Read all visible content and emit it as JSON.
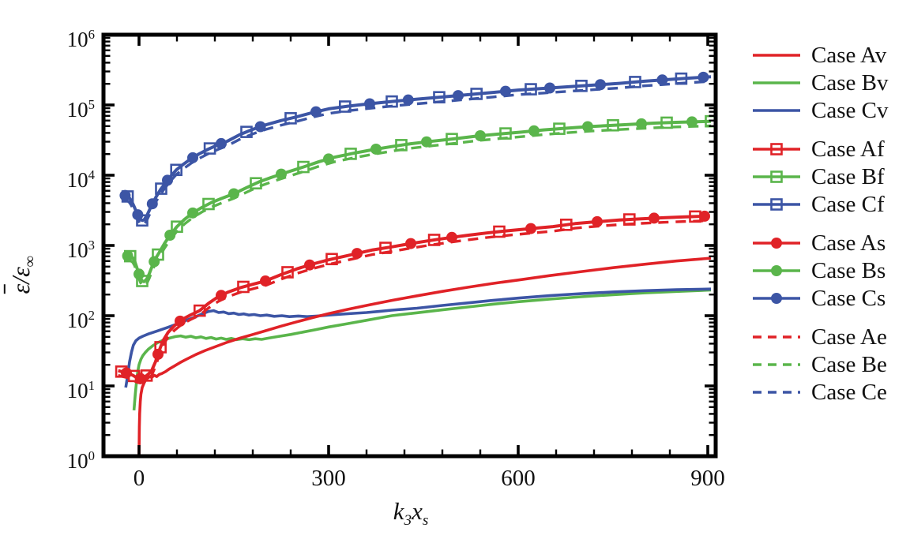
{
  "figure": {
    "background": "#ffffff"
  },
  "chart_data": {
    "type": "line",
    "title": "",
    "xlabel_parts": {
      "base1": "k",
      "sub1": "3",
      "base2": "x",
      "sub2": "s"
    },
    "ylabel_parts": {
      "numerator": "ε",
      "slash": "/",
      "denominator": "ε",
      "subscript": "∞",
      "overbar_on_numerator": true
    },
    "x_axis": {
      "range": [
        -56.25,
        912.5
      ],
      "major_ticks": [
        0,
        300,
        600,
        900
      ],
      "tick_labels": [
        "0",
        "300",
        "600",
        "900"
      ],
      "minor_tick_step": 60
    },
    "y_axis": {
      "scale": "log",
      "range_exponents": [
        0,
        6
      ],
      "tick_label_base": "10",
      "tick_exponents": [
        0,
        1,
        2,
        3,
        4,
        5,
        6
      ]
    },
    "grid": false,
    "legend_position": "right",
    "colors": {
      "red": "#e02227",
      "green": "#5ab54b",
      "blue": "#3c55a5",
      "axis": "#000000"
    },
    "curves": {
      "Av": [
        [
          0,
          1
        ],
        [
          0.5,
          2.6
        ],
        [
          1,
          4
        ],
        [
          2,
          6
        ],
        [
          3,
          7.6
        ],
        [
          5,
          9.5
        ],
        [
          8,
          11
        ],
        [
          11,
          12.4
        ],
        [
          14,
          13
        ],
        [
          17,
          13.6
        ],
        [
          20,
          13.2
        ],
        [
          24,
          14.2
        ],
        [
          28,
          13.6
        ],
        [
          32,
          14.6
        ],
        [
          36,
          15
        ],
        [
          42,
          16
        ],
        [
          48,
          17.5
        ],
        [
          55,
          19
        ],
        [
          65,
          21.5
        ],
        [
          75,
          24
        ],
        [
          90,
          28
        ],
        [
          105,
          32
        ],
        [
          120,
          36
        ],
        [
          140,
          42
        ],
        [
          160,
          48
        ],
        [
          180,
          54
        ],
        [
          200,
          61
        ],
        [
          225,
          71
        ],
        [
          250,
          82
        ],
        [
          275,
          94
        ],
        [
          300,
          107
        ],
        [
          330,
          123
        ],
        [
          360,
          140
        ],
        [
          400,
          165
        ],
        [
          440,
          192
        ],
        [
          480,
          222
        ],
        [
          520,
          254
        ],
        [
          560,
          288
        ],
        [
          600,
          322
        ],
        [
          650,
          372
        ],
        [
          700,
          425
        ],
        [
          750,
          482
        ],
        [
          800,
          540
        ],
        [
          850,
          600
        ],
        [
          905,
          660
        ]
      ],
      "Bv": [
        [
          -8,
          4.5
        ],
        [
          -6,
          7.5
        ],
        [
          -4,
          11.5
        ],
        [
          -2,
          16
        ],
        [
          0,
          20
        ],
        [
          3,
          24
        ],
        [
          6,
          27
        ],
        [
          10,
          30
        ],
        [
          15,
          33.5
        ],
        [
          22,
          37.5
        ],
        [
          30,
          41.5
        ],
        [
          40,
          45.5
        ],
        [
          50,
          48.5
        ],
        [
          58,
          50.5
        ],
        [
          66,
          51.5
        ],
        [
          74,
          49.5
        ],
        [
          82,
          51
        ],
        [
          90,
          48.5
        ],
        [
          98,
          50
        ],
        [
          106,
          47.5
        ],
        [
          114,
          49
        ],
        [
          122,
          46.5
        ],
        [
          130,
          48
        ],
        [
          138,
          46
        ],
        [
          146,
          47.5
        ],
        [
          154,
          45.5
        ],
        [
          164,
          47
        ],
        [
          174,
          45.5
        ],
        [
          184,
          47
        ],
        [
          194,
          46
        ],
        [
          205,
          48
        ],
        [
          220,
          50.5
        ],
        [
          240,
          54
        ],
        [
          260,
          58.5
        ],
        [
          280,
          63.5
        ],
        [
          300,
          69
        ],
        [
          330,
          77
        ],
        [
          360,
          86
        ],
        [
          400,
          100
        ],
        [
          440,
          110
        ],
        [
          480,
          121
        ],
        [
          520,
          133
        ],
        [
          560,
          146
        ],
        [
          600,
          158
        ],
        [
          650,
          172
        ],
        [
          700,
          186
        ],
        [
          750,
          199
        ],
        [
          800,
          211
        ],
        [
          850,
          221
        ],
        [
          905,
          232
        ]
      ],
      "Cv": [
        [
          -21,
          9.5
        ],
        [
          -18,
          14
        ],
        [
          -15,
          22
        ],
        [
          -12,
          30
        ],
        [
          -9,
          38
        ],
        [
          -5,
          44
        ],
        [
          0,
          48
        ],
        [
          6,
          51
        ],
        [
          15,
          55
        ],
        [
          30,
          61
        ],
        [
          45,
          68
        ],
        [
          60,
          76
        ],
        [
          75,
          86
        ],
        [
          90,
          97
        ],
        [
          100,
          106
        ],
        [
          110,
          115
        ],
        [
          118,
          118
        ],
        [
          126,
          111
        ],
        [
          134,
          113
        ],
        [
          142,
          107
        ],
        [
          150,
          109
        ],
        [
          158,
          104
        ],
        [
          166,
          106
        ],
        [
          174,
          102
        ],
        [
          182,
          104
        ],
        [
          192,
          100
        ],
        [
          202,
          102
        ],
        [
          214,
          98
        ],
        [
          226,
          100
        ],
        [
          238,
          97
        ],
        [
          252,
          99
        ],
        [
          266,
          97
        ],
        [
          282,
          99
        ],
        [
          300,
          102
        ],
        [
          320,
          105
        ],
        [
          340,
          108
        ],
        [
          360,
          111
        ],
        [
          380,
          115
        ],
        [
          400,
          120
        ],
        [
          440,
          128
        ],
        [
          480,
          140
        ],
        [
          520,
          152
        ],
        [
          560,
          165
        ],
        [
          600,
          178
        ],
        [
          650,
          193
        ],
        [
          700,
          206
        ],
        [
          750,
          218
        ],
        [
          800,
          227
        ],
        [
          850,
          234
        ],
        [
          905,
          240
        ]
      ],
      "A": [
        [
          -33,
          16.5
        ],
        [
          -28,
          16
        ],
        [
          -22,
          15.5
        ],
        [
          -16,
          15
        ],
        [
          -10,
          14.2
        ],
        [
          -4,
          13.2
        ],
        [
          2,
          12.8
        ],
        [
          8,
          13.2
        ],
        [
          14,
          14.5
        ],
        [
          20,
          16.5
        ],
        [
          26,
          22
        ],
        [
          32,
          32
        ],
        [
          38,
          44
        ],
        [
          46,
          58
        ],
        [
          56,
          72
        ],
        [
          68,
          88
        ],
        [
          82,
          103
        ],
        [
          96,
          118
        ],
        [
          110,
          150
        ],
        [
          125,
          185
        ],
        [
          140,
          215
        ],
        [
          160,
          250
        ],
        [
          180,
          280
        ],
        [
          200,
          312
        ],
        [
          225,
          385
        ],
        [
          250,
          465
        ],
        [
          275,
          545
        ],
        [
          300,
          625
        ],
        [
          335,
          735
        ],
        [
          370,
          865
        ],
        [
          400,
          955
        ],
        [
          430,
          1065
        ],
        [
          460,
          1175
        ],
        [
          490,
          1285
        ],
        [
          520,
          1395
        ],
        [
          550,
          1505
        ],
        [
          585,
          1625
        ],
        [
          620,
          1740
        ],
        [
          655,
          1855
        ],
        [
          690,
          2050
        ],
        [
          725,
          2180
        ],
        [
          760,
          2300
        ],
        [
          795,
          2400
        ],
        [
          830,
          2480
        ],
        [
          865,
          2550
        ],
        [
          900,
          2620
        ]
      ],
      "B": [
        [
          -16,
          710
        ],
        [
          -13,
          700
        ],
        [
          -10,
          670
        ],
        [
          -7,
          600
        ],
        [
          -4,
          500
        ],
        [
          -1,
          415
        ],
        [
          2,
          348
        ],
        [
          5,
          312
        ],
        [
          8,
          306
        ],
        [
          12,
          330
        ],
        [
          16,
          392
        ],
        [
          21,
          512
        ],
        [
          26,
          645
        ],
        [
          32,
          795
        ],
        [
          40,
          1055
        ],
        [
          49,
          1400
        ],
        [
          60,
          1850
        ],
        [
          72,
          2350
        ],
        [
          85,
          2900
        ],
        [
          100,
          3500
        ],
        [
          115,
          4100
        ],
        [
          130,
          4650
        ],
        [
          150,
          5450
        ],
        [
          170,
          6650
        ],
        [
          190,
          8050
        ],
        [
          210,
          9350
        ],
        [
          235,
          11100
        ],
        [
          260,
          13100
        ],
        [
          285,
          15600
        ],
        [
          310,
          18100
        ],
        [
          340,
          20600
        ],
        [
          370,
          23100
        ],
        [
          400,
          25600
        ],
        [
          430,
          28100
        ],
        [
          465,
          30600
        ],
        [
          500,
          33100
        ],
        [
          535,
          36100
        ],
        [
          570,
          38600
        ],
        [
          605,
          41100
        ],
        [
          640,
          44100
        ],
        [
          675,
          46600
        ],
        [
          710,
          49100
        ],
        [
          745,
          51100
        ],
        [
          780,
          53100
        ],
        [
          815,
          55100
        ],
        [
          850,
          56600
        ],
        [
          905,
          58600
        ]
      ],
      "C": [
        [
          -22,
          5150
        ],
        [
          -19,
          5050
        ],
        [
          -16,
          4850
        ],
        [
          -13,
          4450
        ],
        [
          -10,
          3950
        ],
        [
          -7,
          3450
        ],
        [
          -4,
          2980
        ],
        [
          -1,
          2620
        ],
        [
          2,
          2370
        ],
        [
          5,
          2270
        ],
        [
          8,
          2320
        ],
        [
          12,
          2620
        ],
        [
          16,
          3120
        ],
        [
          21,
          3920
        ],
        [
          27,
          4920
        ],
        [
          34,
          6250
        ],
        [
          42,
          7850
        ],
        [
          50,
          9650
        ],
        [
          59,
          11900
        ],
        [
          70,
          14300
        ],
        [
          82,
          17100
        ],
        [
          95,
          20100
        ],
        [
          110,
          23600
        ],
        [
          125,
          27100
        ],
        [
          140,
          30600
        ],
        [
          160,
          38000
        ],
        [
          180,
          45000
        ],
        [
          200,
          52000
        ],
        [
          225,
          60000
        ],
        [
          250,
          68000
        ],
        [
          275,
          78000
        ],
        [
          300,
          88000
        ],
        [
          330,
          96000
        ],
        [
          360,
          103000
        ],
        [
          400,
          112000
        ],
        [
          440,
          121000
        ],
        [
          480,
          130000
        ],
        [
          520,
          140000
        ],
        [
          560,
          151000
        ],
        [
          600,
          163000
        ],
        [
          640,
          172000
        ],
        [
          680,
          182000
        ],
        [
          720,
          192000
        ],
        [
          760,
          203000
        ],
        [
          800,
          218000
        ],
        [
          840,
          231000
        ],
        [
          870,
          241000
        ],
        [
          905,
          252000
        ]
      ]
    },
    "series": [
      {
        "id": "Av",
        "legend": "Case Av",
        "color": "red",
        "style": "plain",
        "curve": "Av",
        "scale": 1
      },
      {
        "id": "Bv",
        "legend": "Case Bv",
        "color": "green",
        "style": "plain",
        "curve": "Bv",
        "scale": 1
      },
      {
        "id": "Cv",
        "legend": "Case Cv",
        "color": "blue",
        "style": "plain",
        "curve": "Cv",
        "scale": 1
      },
      {
        "id": "Af",
        "legend": "Case Af",
        "color": "red",
        "style": "marker-square",
        "curve": "A",
        "scale": 1,
        "marker_x": [
          -28,
          -8,
          12,
          34,
          96,
          165,
          235,
          305,
          390,
          467,
          570,
          676,
          776,
          880
        ]
      },
      {
        "id": "Bf",
        "legend": "Case Bf",
        "color": "green",
        "style": "marker-square",
        "curve": "B",
        "scale": 1,
        "marker_x": [
          -14,
          5,
          30,
          60,
          110,
          185,
          260,
          335,
          415,
          495,
          580,
          665,
          750,
          835,
          905
        ]
      },
      {
        "id": "Cf",
        "legend": "Case Cf",
        "color": "blue",
        "style": "marker-square",
        "curve": "C",
        "scale": 1,
        "marker_x": [
          -18,
          5,
          35,
          59,
          112,
          170,
          240,
          326,
          400,
          475,
          534,
          620,
          700,
          785,
          858
        ]
      },
      {
        "id": "As",
        "legend": "Case As",
        "color": "red",
        "style": "marker-circle",
        "curve": "A",
        "scale": 1,
        "marker_x": [
          -20,
          2,
          30,
          65,
          130,
          200,
          270,
          345,
          430,
          495,
          620,
          725,
          815,
          895
        ]
      },
      {
        "id": "Bs",
        "legend": "Case Bs",
        "color": "green",
        "style": "marker-circle",
        "curve": "B",
        "scale": 1,
        "marker_x": [
          -18,
          0,
          24,
          49,
          85,
          150,
          225,
          300,
          375,
          455,
          540,
          625,
          710,
          795,
          875
        ]
      },
      {
        "id": "Cs",
        "legend": "Case Cs",
        "color": "blue",
        "style": "marker-circle",
        "curve": "C",
        "scale": 1,
        "marker_x": [
          -22,
          -2,
          21,
          45,
          85,
          130,
          192,
          280,
          365,
          426,
          505,
          580,
          650,
          730,
          828,
          893
        ]
      },
      {
        "id": "Ae",
        "legend": "Case Ae",
        "color": "red",
        "style": "dashed",
        "curve": "A",
        "scale": 0.86
      },
      {
        "id": "Be",
        "legend": "Case Be",
        "color": "green",
        "style": "dashed",
        "curve": "B",
        "scale": 0.86
      },
      {
        "id": "Ce",
        "legend": "Case Ce",
        "color": "blue",
        "style": "dashed",
        "curve": "C",
        "scale": 0.86
      }
    ]
  },
  "legend": {
    "items": [
      {
        "label": "Case Av"
      },
      {
        "label": "Case Bv"
      },
      {
        "label": "Case Cv"
      },
      {
        "label": "Case Af"
      },
      {
        "label": "Case Bf"
      },
      {
        "label": "Case Cf"
      },
      {
        "label": "Case As"
      },
      {
        "label": "Case Bs"
      },
      {
        "label": "Case Cs"
      },
      {
        "label": "Case Ae"
      },
      {
        "label": "Case Be"
      },
      {
        "label": "Case Ce"
      }
    ]
  }
}
